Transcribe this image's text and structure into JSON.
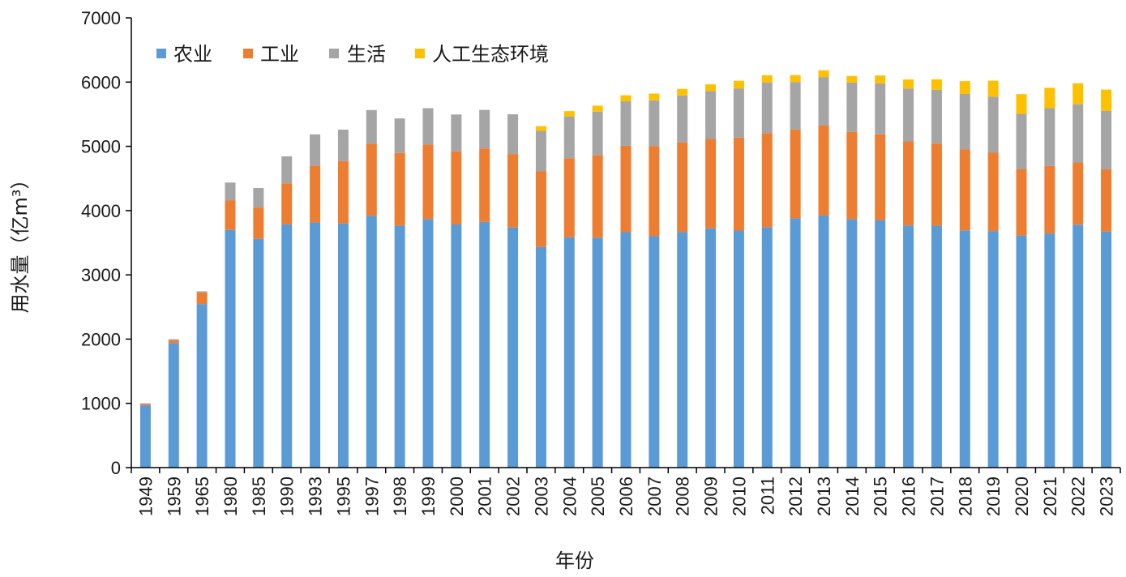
{
  "chart_data": {
    "type": "bar",
    "stacked": true,
    "title": "",
    "xlabel": "年份",
    "ylabel": "用水量（亿m³）",
    "ylim": [
      0,
      7000
    ],
    "yticks": [
      0,
      1000,
      2000,
      3000,
      4000,
      5000,
      6000,
      7000
    ],
    "grid": false,
    "legend_position": "top-left",
    "categories": [
      "1949",
      "1959",
      "1965",
      "1980",
      "1985",
      "1990",
      "1993",
      "1995",
      "1997",
      "1998",
      "1999",
      "2000",
      "2001",
      "2002",
      "2003",
      "2004",
      "2005",
      "2006",
      "2007",
      "2008",
      "2009",
      "2010",
      "2011",
      "2012",
      "2013",
      "2014",
      "2015",
      "2016",
      "2017",
      "2018",
      "2019",
      "2020",
      "2021",
      "2022",
      "2023"
    ],
    "series": [
      {
        "name": "农业",
        "color": "#5b9bd5",
        "values": [
          970,
          1938,
          2545,
          3699,
          3560,
          3785,
          3817,
          3800,
          3920,
          3766,
          3869,
          3784,
          3825,
          3738,
          3433,
          3586,
          3580,
          3664,
          3602,
          3665,
          3723,
          3689,
          3743,
          3880,
          3922,
          3869,
          3852,
          3768,
          3766,
          3693,
          3682,
          3612,
          3644,
          3781,
          3672
        ]
      },
      {
        "name": "工业",
        "color": "#ed7d31",
        "values": [
          24,
          46,
          181,
          457,
          487,
          640,
          880,
          970,
          1120,
          1130,
          1159,
          1139,
          1142,
          1142,
          1177,
          1229,
          1285,
          1344,
          1404,
          1397,
          1391,
          1447,
          1462,
          1381,
          1406,
          1356,
          1335,
          1308,
          1277,
          1262,
          1218,
          1030,
          1050,
          968,
          970
        ]
      },
      {
        "name": "生活",
        "color": "#a5a5a5",
        "values": [
          6,
          14,
          18,
          280,
          304,
          420,
          489,
          490,
          525,
          538,
          566,
          573,
          600,
          619,
          631,
          651,
          675,
          694,
          710,
          729,
          748,
          765,
          790,
          740,
          750,
          767,
          793,
          822,
          838,
          860,
          871,
          863,
          900,
          906,
          909
        ]
      },
      {
        "name": "人工生态环境",
        "color": "#ffc000",
        "values": [
          0,
          0,
          0,
          0,
          0,
          0,
          0,
          0,
          0,
          0,
          0,
          0,
          0,
          0,
          73,
          82,
          93,
          93,
          105,
          103,
          103,
          119,
          112,
          108,
          106,
          103,
          123,
          143,
          162,
          200,
          250,
          307,
          317,
          327,
          332
        ]
      }
    ]
  }
}
